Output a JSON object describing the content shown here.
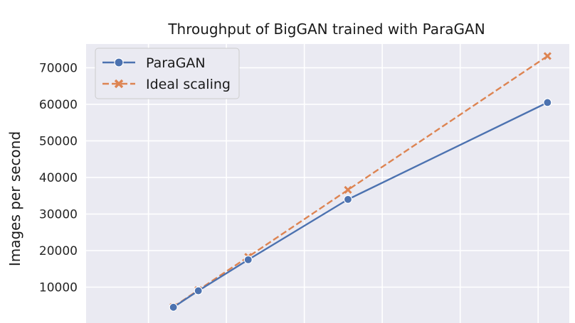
{
  "chart_data": {
    "type": "line",
    "title": "Throughput of BigGAN trained with ParaGAN",
    "xlabel": "",
    "ylabel": "Images per second",
    "x": [
      8,
      16,
      32,
      64,
      128
    ],
    "xlim": [
      -20,
      135
    ],
    "ylim": [
      0,
      76500
    ],
    "yticks": [
      10000,
      20000,
      30000,
      40000,
      50000,
      60000,
      70000
    ],
    "ytick_labels": [
      "10000",
      "20000",
      "30000",
      "40000",
      "50000",
      "60000",
      "70000"
    ],
    "xgrid": [
      0,
      25,
      50,
      75,
      100,
      125
    ],
    "grid": true,
    "legend_position": "top-left",
    "series": [
      {
        "name": "ParaGAN",
        "values": [
          4500,
          9000,
          17500,
          34000,
          60500
        ],
        "color": "#4c72b0",
        "linestyle": "solid",
        "marker": "circle"
      },
      {
        "name": "Ideal scaling",
        "values": [
          4600,
          9200,
          18300,
          36600,
          73200
        ],
        "color": "#dd8452",
        "linestyle": "dashed",
        "marker": "x"
      }
    ],
    "background": "#eaeaf2"
  }
}
